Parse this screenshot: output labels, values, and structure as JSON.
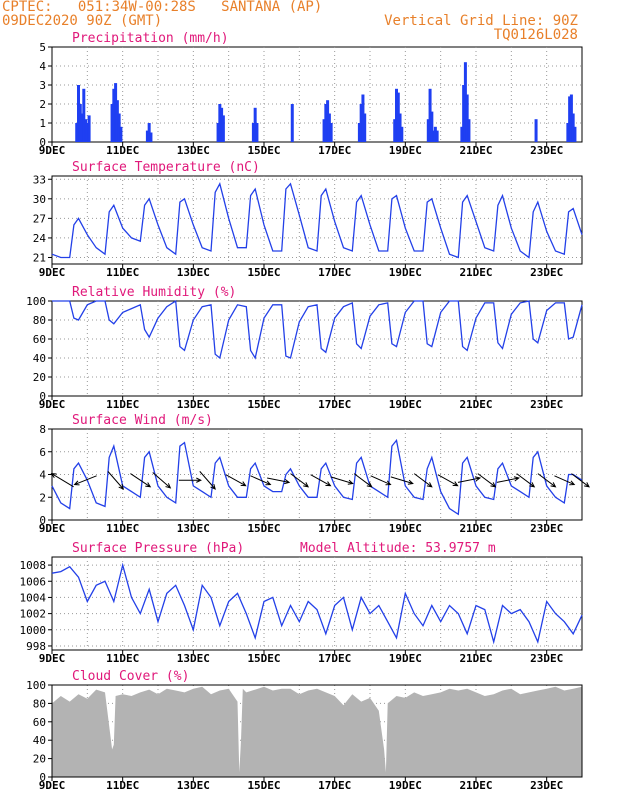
{
  "header": {
    "line1": "CPTEC:   051:34W-00:28S   SANTANA (AP)",
    "line2": "09DEC2020 90Z (GMT)",
    "right1": "Vertical Grid Line: 90Z",
    "right2": "TQ0126L028"
  },
  "colors": {
    "line": "#2340e8",
    "bar": "#1f3ff2",
    "cloud": "#b3b3b3",
    "title": "#e0187a",
    "header": "#e8802a"
  },
  "chart_data": [
    {
      "type": "bar",
      "title": "Precipitation (mm/h)",
      "ylim": [
        0,
        5
      ],
      "yticks": [
        "0",
        "1",
        "2",
        "3",
        "4",
        "5"
      ],
      "x_labels": [
        "9DEC",
        "11DEC",
        "13DEC",
        "15DEC",
        "17DEC",
        "19DEC",
        "21DEC",
        "23DEC"
      ],
      "day_range": [
        9,
        24
      ],
      "x": [
        9.7,
        9.75,
        9.8,
        9.85,
        9.9,
        9.95,
        10.0,
        10.05,
        10.7,
        10.75,
        10.8,
        10.85,
        10.9,
        10.95,
        11.7,
        11.75,
        11.8,
        13.7,
        13.75,
        13.8,
        13.85,
        14.7,
        14.75,
        14.8,
        15.8,
        16.7,
        16.75,
        16.8,
        16.85,
        16.9,
        17.7,
        17.75,
        17.8,
        17.85,
        18.7,
        18.75,
        18.8,
        18.85,
        18.9,
        19.65,
        19.7,
        19.75,
        19.8,
        19.85,
        19.9,
        20.6,
        20.65,
        20.7,
        20.75,
        20.8,
        22.7,
        23.6,
        23.65,
        23.7,
        23.75,
        23.8
      ],
      "values": [
        1.0,
        3.0,
        2.0,
        1.5,
        2.8,
        1.2,
        1.0,
        1.4,
        2.0,
        2.8,
        3.1,
        2.2,
        1.5,
        0.8,
        0.6,
        1.0,
        0.5,
        1.0,
        2.0,
        1.8,
        1.4,
        1.0,
        1.8,
        1.0,
        2.0,
        1.2,
        2.0,
        2.2,
        1.5,
        1.0,
        1.0,
        2.0,
        2.5,
        1.5,
        1.2,
        2.8,
        2.6,
        1.5,
        0.8,
        1.2,
        2.8,
        1.6,
        0.6,
        0.8,
        0.6,
        0.8,
        3.0,
        4.2,
        2.5,
        1.2,
        1.2,
        1.0,
        2.4,
        2.5,
        1.5,
        0.8
      ]
    },
    {
      "type": "line",
      "title": "Surface Temperature (nC)",
      "ylim": [
        20,
        33.5
      ],
      "yticks": [
        "21",
        "24",
        "27",
        "30",
        "33"
      ],
      "x_labels": [
        "9DEC",
        "11DEC",
        "13DEC",
        "15DEC",
        "17DEC",
        "19DEC",
        "21DEC",
        "23DEC"
      ],
      "day_range": [
        9,
        24
      ],
      "x": [
        9,
        9.25,
        9.5,
        9.62,
        9.75,
        10,
        10.25,
        10.5,
        10.62,
        10.75,
        11,
        11.25,
        11.5,
        11.62,
        11.75,
        12,
        12.25,
        12.5,
        12.62,
        12.75,
        13,
        13.25,
        13.5,
        13.62,
        13.75,
        14,
        14.25,
        14.5,
        14.62,
        14.75,
        15,
        15.25,
        15.5,
        15.62,
        15.75,
        16,
        16.25,
        16.5,
        16.62,
        16.75,
        17,
        17.25,
        17.5,
        17.62,
        17.75,
        18,
        18.25,
        18.5,
        18.62,
        18.75,
        19,
        19.25,
        19.5,
        19.62,
        19.75,
        20,
        20.25,
        20.5,
        20.62,
        20.75,
        21,
        21.25,
        21.5,
        21.62,
        21.75,
        22,
        22.25,
        22.5,
        22.62,
        22.75,
        23,
        23.25,
        23.5,
        23.62,
        23.75,
        24
      ],
      "values": [
        21.5,
        21.0,
        21.0,
        26.0,
        27.0,
        24.5,
        22.5,
        21.5,
        28.0,
        29.0,
        25.5,
        24.0,
        23.5,
        29.0,
        30.0,
        26.0,
        22.5,
        21.5,
        29.5,
        30.0,
        26.0,
        22.5,
        22.0,
        31.0,
        32.3,
        27.0,
        22.5,
        22.5,
        30.5,
        31.5,
        26.0,
        22.0,
        22.0,
        31.5,
        32.3,
        27.5,
        22.5,
        22.0,
        30.5,
        31.5,
        26.5,
        22.5,
        22.0,
        29.5,
        30.5,
        26.0,
        22.0,
        22.0,
        30.0,
        30.5,
        25.5,
        22.0,
        22.0,
        29.5,
        30.0,
        25.5,
        21.5,
        21.0,
        29.5,
        30.5,
        26.5,
        22.5,
        22.0,
        29.0,
        30.5,
        25.5,
        22.0,
        21.0,
        28.0,
        29.5,
        25.0,
        22.0,
        21.5,
        28.0,
        28.5,
        24.5
      ]
    },
    {
      "type": "line",
      "title": "Relative Humidity (%)",
      "ylim": [
        0,
        100
      ],
      "yticks": [
        "0",
        "20",
        "40",
        "60",
        "80",
        "100"
      ],
      "x_labels": [
        "9DEC",
        "11DEC",
        "13DEC",
        "15DEC",
        "17DEC",
        "19DEC",
        "21DEC",
        "23DEC"
      ],
      "day_range": [
        9,
        24
      ],
      "x": [
        9,
        9.25,
        9.5,
        9.62,
        9.75,
        10,
        10.25,
        10.5,
        10.62,
        10.75,
        11,
        11.25,
        11.5,
        11.62,
        11.75,
        12,
        12.25,
        12.5,
        12.62,
        12.75,
        13,
        13.25,
        13.5,
        13.62,
        13.75,
        14,
        14.25,
        14.5,
        14.62,
        14.75,
        15,
        15.25,
        15.5,
        15.62,
        15.75,
        16,
        16.25,
        16.5,
        16.62,
        16.75,
        17,
        17.25,
        17.5,
        17.62,
        17.75,
        18,
        18.25,
        18.5,
        18.62,
        18.75,
        19,
        19.25,
        19.5,
        19.62,
        19.75,
        20,
        20.25,
        20.5,
        20.62,
        20.75,
        21,
        21.25,
        21.5,
        21.62,
        21.75,
        22,
        22.25,
        22.5,
        22.62,
        22.75,
        23,
        23.25,
        23.5,
        23.62,
        23.75,
        24
      ],
      "values": [
        100,
        100,
        100,
        82,
        80,
        96,
        100,
        100,
        80,
        76,
        88,
        92,
        96,
        70,
        62,
        82,
        94,
        100,
        52,
        48,
        80,
        94,
        96,
        44,
        40,
        80,
        96,
        94,
        48,
        40,
        82,
        96,
        96,
        42,
        40,
        78,
        94,
        96,
        50,
        46,
        82,
        94,
        98,
        55,
        50,
        84,
        96,
        98,
        55,
        52,
        88,
        100,
        100,
        55,
        52,
        88,
        100,
        100,
        52,
        48,
        82,
        98,
        98,
        56,
        50,
        86,
        98,
        100,
        60,
        56,
        90,
        98,
        98,
        60,
        62,
        96
      ]
    },
    {
      "type": "line",
      "title": "Surface Wind (m/s)",
      "ylim": [
        0,
        8
      ],
      "yticks": [
        "0",
        "2",
        "4",
        "6",
        "8"
      ],
      "x_labels": [
        "9DEC",
        "11DEC",
        "13DEC",
        "15DEC",
        "17DEC",
        "19DEC",
        "21DEC",
        "23DEC"
      ],
      "day_range": [
        9,
        24
      ],
      "x": [
        9,
        9.25,
        9.5,
        9.62,
        9.75,
        10,
        10.25,
        10.5,
        10.62,
        10.75,
        11,
        11.25,
        11.5,
        11.62,
        11.75,
        12,
        12.25,
        12.5,
        12.62,
        12.75,
        13,
        13.25,
        13.5,
        13.62,
        13.75,
        14,
        14.25,
        14.5,
        14.62,
        14.75,
        15,
        15.25,
        15.5,
        15.62,
        15.75,
        16,
        16.25,
        16.5,
        16.62,
        16.75,
        17,
        17.25,
        17.5,
        17.62,
        17.75,
        18,
        18.25,
        18.5,
        18.62,
        18.75,
        19,
        19.25,
        19.5,
        19.62,
        19.75,
        20,
        20.25,
        20.5,
        20.62,
        20.75,
        21,
        21.25,
        21.5,
        21.62,
        21.75,
        22,
        22.25,
        22.5,
        22.62,
        22.75,
        23,
        23.25,
        23.5,
        23.62,
        23.75,
        24
      ],
      "values": [
        3.0,
        1.5,
        1.0,
        4.5,
        5.0,
        3.5,
        1.5,
        1.2,
        5.5,
        6.5,
        3.0,
        2.5,
        2.0,
        5.5,
        6.0,
        3.0,
        2.0,
        1.5,
        6.5,
        6.8,
        3.0,
        2.5,
        2.0,
        5.0,
        5.5,
        3.0,
        2.0,
        2.0,
        4.5,
        5.0,
        3.0,
        2.5,
        2.5,
        4.0,
        4.5,
        3.0,
        2.0,
        2.0,
        4.5,
        5.0,
        3.0,
        2.0,
        1.8,
        5.0,
        5.5,
        3.0,
        2.5,
        2.0,
        6.5,
        7.0,
        3.0,
        2.0,
        1.8,
        4.5,
        5.5,
        2.5,
        1.0,
        0.5,
        5.0,
        5.5,
        3.0,
        2.0,
        1.8,
        4.5,
        5.0,
        3.0,
        2.5,
        2.0,
        5.5,
        6.0,
        3.0,
        2.0,
        1.5,
        4.0,
        4.0,
        3.5
      ],
      "arrows": [
        {
          "x": 9.3,
          "dx": -1.0,
          "dy": 0.6
        },
        {
          "x": 9.95,
          "dx": -1.0,
          "dy": -0.4
        },
        {
          "x": 10.8,
          "dx": 0.7,
          "dy": -0.8
        },
        {
          "x": 11.5,
          "dx": 0.9,
          "dy": -0.6
        },
        {
          "x": 12.1,
          "dx": 0.8,
          "dy": -0.7
        },
        {
          "x": 12.9,
          "dx": 1.0,
          "dy": 0.0
        },
        {
          "x": 13.4,
          "dx": 0.7,
          "dy": -0.8
        },
        {
          "x": 14.2,
          "dx": 0.9,
          "dy": -0.5
        },
        {
          "x": 14.9,
          "dx": 0.9,
          "dy": -0.4
        },
        {
          "x": 15.4,
          "dx": 1.0,
          "dy": -0.2
        },
        {
          "x": 16.0,
          "dx": 0.8,
          "dy": -0.6
        },
        {
          "x": 16.6,
          "dx": 0.9,
          "dy": -0.5
        },
        {
          "x": 17.2,
          "dx": 1.0,
          "dy": -0.3
        },
        {
          "x": 17.8,
          "dx": 0.8,
          "dy": -0.6
        },
        {
          "x": 18.3,
          "dx": 0.9,
          "dy": -0.4
        },
        {
          "x": 18.9,
          "dx": 1.0,
          "dy": -0.3
        },
        {
          "x": 19.5,
          "dx": 0.8,
          "dy": -0.6
        },
        {
          "x": 20.2,
          "dx": 0.9,
          "dy": -0.5
        },
        {
          "x": 20.8,
          "dx": 1.0,
          "dy": 0.2
        },
        {
          "x": 21.3,
          "dx": 0.8,
          "dy": -0.6
        },
        {
          "x": 21.9,
          "dx": 1.0,
          "dy": 0.2
        },
        {
          "x": 22.4,
          "dx": 0.8,
          "dy": -0.6
        },
        {
          "x": 23.0,
          "dx": 0.8,
          "dy": -0.6
        },
        {
          "x": 23.5,
          "dx": 0.9,
          "dy": -0.4
        },
        {
          "x": 23.95,
          "dx": 0.8,
          "dy": -0.6
        }
      ]
    },
    {
      "type": "line",
      "title": "Surface Pressure (hPa)",
      "annotation": "Model Altitude: 53.9757 m",
      "ylim": [
        997.5,
        1009
      ],
      "yticks": [
        "998",
        "1000",
        "1002",
        "1004",
        "1006",
        "1008"
      ],
      "x_labels": [
        "9DEC",
        "11DEC",
        "13DEC",
        "15DEC",
        "17DEC",
        "19DEC",
        "21DEC",
        "23DEC"
      ],
      "day_range": [
        9,
        24
      ],
      "x": [
        9,
        9.25,
        9.5,
        9.75,
        10,
        10.25,
        10.5,
        10.75,
        11,
        11.25,
        11.5,
        11.75,
        12,
        12.25,
        12.5,
        12.75,
        13,
        13.25,
        13.5,
        13.75,
        14,
        14.25,
        14.5,
        14.75,
        15,
        15.25,
        15.5,
        15.75,
        16,
        16.25,
        16.5,
        16.75,
        17,
        17.25,
        17.5,
        17.75,
        18,
        18.25,
        18.5,
        18.75,
        19,
        19.25,
        19.5,
        19.75,
        20,
        20.25,
        20.5,
        20.75,
        21,
        21.25,
        21.5,
        21.75,
        22,
        22.25,
        22.5,
        22.75,
        23,
        23.25,
        23.5,
        23.75,
        24
      ],
      "values": [
        1007.0,
        1007.2,
        1007.8,
        1006.5,
        1003.5,
        1005.5,
        1006.0,
        1003.5,
        1008.0,
        1004.0,
        1002.0,
        1005.0,
        1001.0,
        1004.5,
        1005.5,
        1003.0,
        1000.0,
        1005.5,
        1004.0,
        1000.5,
        1003.5,
        1004.5,
        1002.0,
        999.0,
        1003.5,
        1004.0,
        1000.5,
        1003.0,
        1001.0,
        1003.5,
        1002.5,
        999.5,
        1003.0,
        1004.0,
        1000.0,
        1004.0,
        1002.0,
        1003.0,
        1001.0,
        999.0,
        1004.5,
        1002.0,
        1000.5,
        1003.0,
        1001.0,
        1003.0,
        1002.0,
        999.5,
        1003.0,
        1002.5,
        998.5,
        1003.0,
        1002.0,
        1002.5,
        1001.0,
        998.5,
        1003.5,
        1002.0,
        1001.0,
        999.5,
        1001.8
      ]
    },
    {
      "type": "area",
      "title": "Cloud Cover (%)",
      "ylim": [
        0,
        100
      ],
      "yticks": [
        "0",
        "20",
        "40",
        "60",
        "80",
        "100"
      ],
      "x_labels": [
        "9DEC",
        "11DEC",
        "13DEC",
        "15DEC",
        "17DEC",
        "19DEC",
        "21DEC",
        "23DEC"
      ],
      "day_range": [
        9,
        24
      ],
      "x": [
        9,
        9.25,
        9.5,
        9.75,
        10,
        10.25,
        10.5,
        10.7,
        10.75,
        10.8,
        11,
        11.25,
        11.5,
        11.75,
        12,
        12.25,
        12.5,
        12.75,
        13,
        13.25,
        13.5,
        13.75,
        14,
        14.25,
        14.3,
        14.35,
        14.4,
        14.5,
        14.75,
        15,
        15.25,
        15.5,
        15.75,
        16,
        16.25,
        16.5,
        16.75,
        17,
        17.25,
        17.5,
        17.75,
        18,
        18.25,
        18.4,
        18.45,
        18.5,
        18.75,
        19,
        19.25,
        19.5,
        19.75,
        20,
        20.25,
        20.5,
        20.75,
        21,
        21.25,
        21.5,
        21.75,
        22,
        22.25,
        22.5,
        22.75,
        23,
        23.25,
        23.5,
        23.75,
        24
      ],
      "values": [
        80,
        88,
        82,
        90,
        85,
        95,
        92,
        30,
        35,
        88,
        90,
        88,
        92,
        95,
        90,
        96,
        94,
        92,
        96,
        98,
        90,
        94,
        96,
        82,
        5,
        40,
        96,
        92,
        95,
        98,
        94,
        96,
        96,
        90,
        94,
        96,
        92,
        88,
        78,
        90,
        82,
        86,
        72,
        30,
        5,
        80,
        88,
        86,
        92,
        88,
        90,
        92,
        96,
        94,
        96,
        92,
        88,
        90,
        94,
        96,
        90,
        92,
        94,
        96,
        98,
        94,
        96,
        98
      ]
    }
  ]
}
